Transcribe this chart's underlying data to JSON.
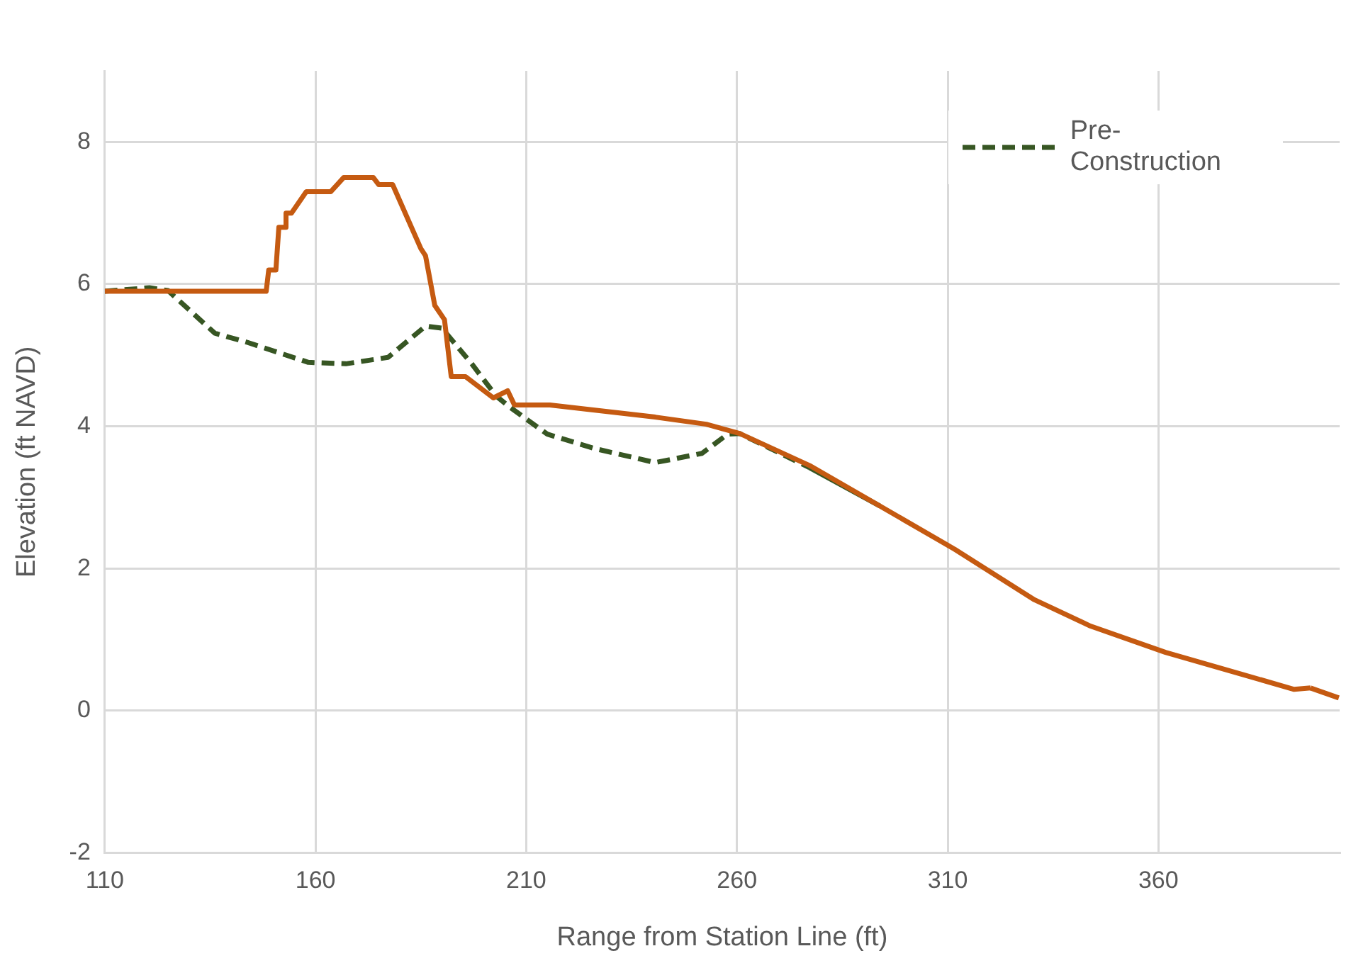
{
  "chart_data": {
    "type": "line",
    "xlabel": "Range from Station Line (ft)",
    "ylabel": "Elevation (ft NAVD)",
    "xlim": [
      110,
      403
    ],
    "xticks": [
      110,
      160,
      210,
      260,
      310,
      360
    ],
    "ylim": [
      -2,
      9
    ],
    "yticks": [
      -2,
      0,
      2,
      4,
      6,
      8
    ],
    "grid": true,
    "legend": "top right",
    "series": [
      {
        "color": "#c55a11",
        "line_style": "solid",
        "x": [
          110,
          148.3,
          148.9,
          150.6,
          151.3,
          152.8,
          153,
          154.3,
          157.8,
          163.6,
          166.7,
          173.7,
          175,
          178.3,
          185,
          186.1,
          188.3,
          190.6,
          192.2,
          195.6,
          202.2,
          205.6,
          207.2,
          215.6,
          240.6,
          252.7,
          260.6,
          277.2,
          293.9,
          311.7,
          330.6,
          343.9,
          361.7,
          379.4,
          392.2,
          396.1,
          402.8
        ],
        "values": [
          5.9,
          5.9,
          6.2,
          6.2,
          6.8,
          6.8,
          7.0,
          7.0,
          7.3,
          7.3,
          7.5,
          7.5,
          7.4,
          7.4,
          6.5,
          6.4,
          5.7,
          5.5,
          4.7,
          4.7,
          4.4,
          4.5,
          4.3,
          4.3,
          4.13,
          4.03,
          3.9,
          3.45,
          2.88,
          2.27,
          1.56,
          1.19,
          0.82,
          0.52,
          0.3,
          0.32,
          0.18
        ]
      },
      {
        "name": "Pre-Construction",
        "color": "#375623",
        "line_style": "dashed",
        "x": [
          110,
          120.6,
          125,
          136.1,
          143.9,
          158.3,
          167.2,
          177.2,
          186.1,
          190,
          197.2,
          202.8,
          206.1,
          215,
          226.1,
          240.6,
          251.7,
          257.8,
          260.6,
          277.2,
          293.9
        ],
        "values": [
          5.9,
          5.95,
          5.91,
          5.31,
          5.18,
          4.9,
          4.88,
          4.97,
          5.41,
          5.38,
          4.87,
          4.43,
          4.27,
          3.89,
          3.69,
          3.49,
          3.62,
          3.89,
          3.9,
          3.42,
          2.88
        ]
      }
    ]
  }
}
